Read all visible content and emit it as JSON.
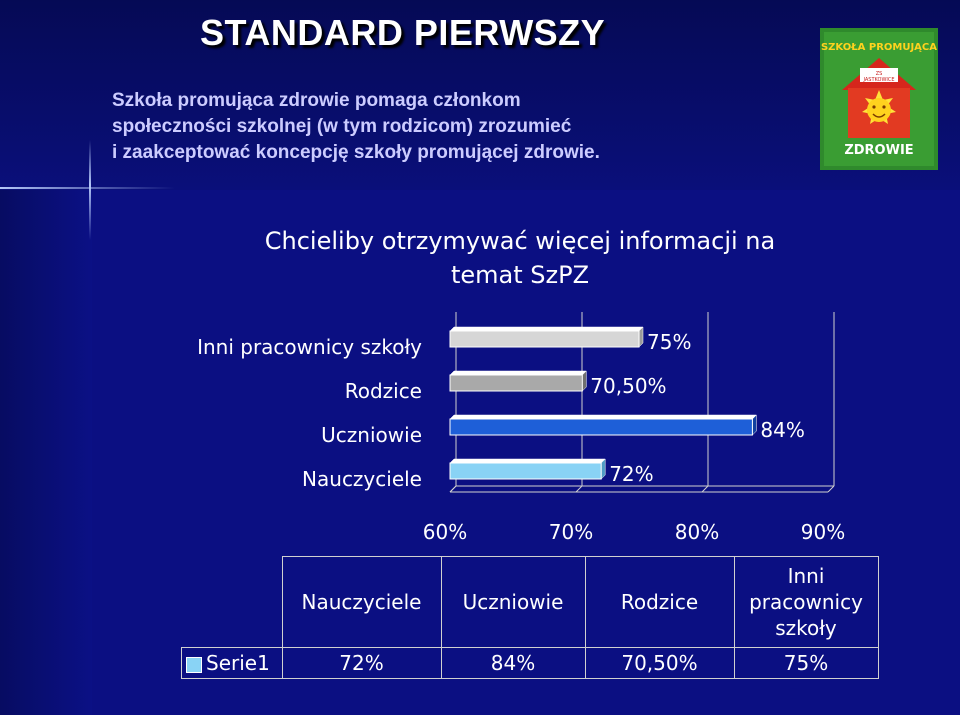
{
  "slide": {
    "title": "STANDARD PIERWSZY",
    "intro_lines": [
      "Szkoła promująca zdrowie pomaga członkom",
      "społeczności szkolnej (w tym rodzicom) zrozumieć",
      "i zaakceptować koncepcję szkoły promującej zdrowie."
    ]
  },
  "logo": {
    "text_top": "SZKOŁA PROMUJĄCA",
    "text_bottom": "ZDROWIE",
    "badge_lines": [
      "ZS",
      "JASTKOWICE"
    ],
    "icon": "sun-house-logo"
  },
  "colors": {
    "background": "#0b0f82",
    "intro_text": "#ccccff",
    "bar_gray": "#d6d6d6",
    "bar_gray_dark": "#a9a9a9",
    "bar_blue": "#1e5fd8",
    "bar_lightblue": "#89d3f5"
  },
  "chart_data": {
    "type": "bar",
    "orientation": "horizontal",
    "title": "Chcieliby otrzymywać więcej informacji na temat SzPZ",
    "categories": [
      "Inni pracownicy szkoły",
      "Rodzice",
      "Uczniowie",
      "Nauczyciele"
    ],
    "series": [
      {
        "name": "Serie1",
        "values": [
          75,
          70.5,
          84,
          72
        ],
        "labels": [
          "75%",
          "70,50%",
          "84%",
          "72%"
        ]
      }
    ],
    "xlim": [
      60,
      90
    ],
    "xticks": [
      "60%",
      "70%",
      "80%",
      "90%"
    ],
    "bar_colors": [
      "#d6d6d6",
      "#a9a9a9",
      "#1e5fd8",
      "#89d3f5"
    ],
    "grid": true,
    "data_table": {
      "headers": [
        "Nauczyciele",
        "Uczniowie",
        "Rodzice",
        "Inni pracownicy szkoły"
      ],
      "series_name": "Serie1",
      "values": [
        "72%",
        "84%",
        "70,50%",
        "75%"
      ]
    }
  }
}
